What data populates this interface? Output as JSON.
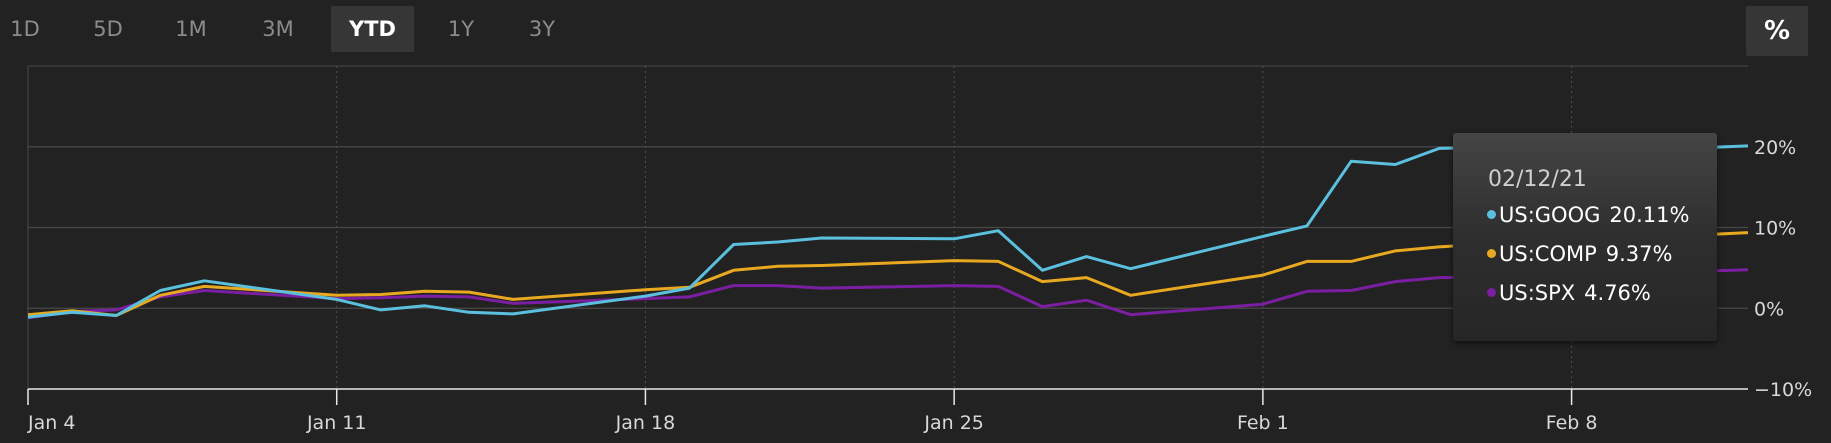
{
  "range_buttons": [
    {
      "label": "1D",
      "active": false
    },
    {
      "label": "5D",
      "active": false
    },
    {
      "label": "1M",
      "active": false
    },
    {
      "label": "3M",
      "active": false
    },
    {
      "label": "YTD",
      "active": true
    },
    {
      "label": "1Y",
      "active": false
    },
    {
      "label": "3Y",
      "active": false
    }
  ],
  "percent_toggle": "%",
  "tooltip": {
    "date": "02/12/21",
    "rows": [
      {
        "series": "US:GOOG",
        "value": "20.11%",
        "color": "#5bc0de"
      },
      {
        "series": "US:COMP",
        "value": "9.37%",
        "color": "#e8a920"
      },
      {
        "series": "US:SPX",
        "value": "4.76%",
        "color": "#7a1fa2"
      }
    ]
  },
  "chart_data": {
    "type": "line",
    "x_tick_labels": [
      "Jan 4",
      "Jan 11",
      "Jan 18",
      "Jan 25",
      "Feb 1",
      "Feb 8"
    ],
    "x_tick_days": [
      0,
      7,
      14,
      21,
      28,
      35
    ],
    "x_range_days": [
      0,
      39
    ],
    "y_tick_labels": [
      "20%",
      "10%",
      "0%",
      "−10%"
    ],
    "y_tick_values": [
      20,
      10,
      0,
      -10
    ],
    "ylim": [
      -10,
      30
    ],
    "y_unit": "%",
    "grid": true,
    "series": [
      {
        "name": "US:GOOG",
        "color": "#5bc0de",
        "x": [
          0,
          1,
          2,
          3,
          4,
          7,
          8,
          9,
          10,
          11,
          14,
          15,
          16,
          17,
          18,
          21,
          22,
          23,
          24,
          25,
          28,
          29,
          30,
          31,
          32,
          35,
          36,
          37,
          38,
          39
        ],
        "y": [
          -1.1,
          -0.5,
          -0.9,
          2.2,
          3.4,
          1.1,
          -0.2,
          0.3,
          -0.5,
          -0.7,
          1.5,
          2.5,
          7.9,
          8.2,
          8.7,
          8.6,
          9.6,
          4.7,
          6.4,
          4.9,
          8.9,
          10.2,
          18.2,
          17.8,
          19.8,
          20.1,
          19.8,
          20.0,
          19.9,
          20.11
        ]
      },
      {
        "name": "US:COMP",
        "color": "#e8a920",
        "x": [
          0,
          1,
          2,
          3,
          4,
          7,
          8,
          9,
          10,
          11,
          14,
          15,
          16,
          17,
          18,
          21,
          22,
          23,
          24,
          25,
          28,
          29,
          30,
          31,
          32,
          35,
          36,
          37,
          38,
          39
        ],
        "y": [
          -0.8,
          -0.3,
          -0.9,
          1.6,
          2.7,
          1.6,
          1.7,
          2.1,
          2.0,
          1.1,
          2.3,
          2.6,
          4.7,
          5.2,
          5.3,
          5.9,
          5.8,
          3.3,
          3.8,
          1.6,
          4.1,
          5.8,
          5.8,
          7.1,
          7.6,
          8.6,
          8.8,
          9.0,
          9.1,
          9.37
        ]
      },
      {
        "name": "US:SPX",
        "color": "#7a1fa2",
        "x": [
          0,
          1,
          2,
          3,
          4,
          7,
          8,
          9,
          10,
          11,
          14,
          15,
          16,
          17,
          18,
          21,
          22,
          23,
          24,
          25,
          28,
          29,
          30,
          31,
          32,
          35,
          36,
          37,
          38,
          39
        ],
        "y": [
          -1.2,
          -0.4,
          -0.2,
          1.4,
          2.2,
          1.2,
          1.3,
          1.5,
          1.4,
          0.6,
          1.2,
          1.4,
          2.8,
          2.8,
          2.5,
          2.8,
          2.7,
          0.2,
          1.0,
          -0.8,
          0.5,
          2.1,
          2.2,
          3.3,
          3.8,
          4.0,
          4.2,
          4.4,
          4.6,
          4.76
        ]
      }
    ]
  }
}
